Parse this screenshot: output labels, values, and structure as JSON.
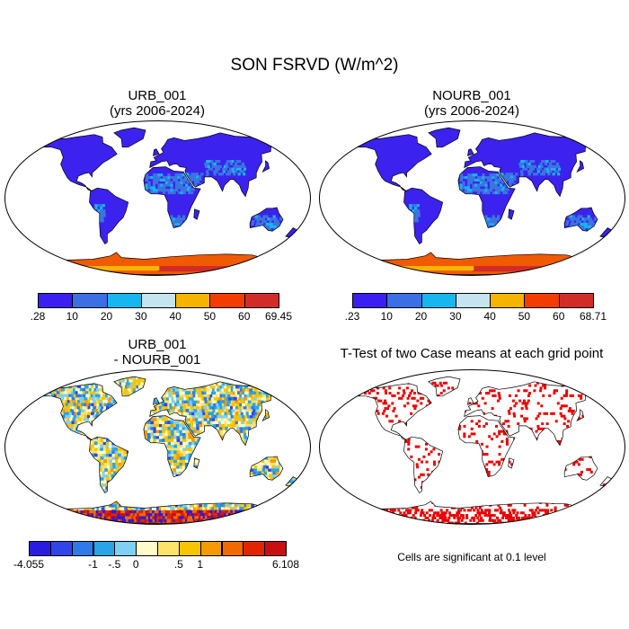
{
  "title": "SON FSRVD (W/m^2)",
  "panels": [
    {
      "title_line1": "URB_001",
      "title_line2": "(yrs 2006-2024)"
    },
    {
      "title_line1": "NOURB_001",
      "title_line2": "(yrs 2006-2024)"
    },
    {
      "title_line1": "URB_001",
      "title_line2": "- NOURB_001"
    },
    {
      "title_line1": "T-Test of two Case means at each grid point",
      "title_line2": ""
    }
  ],
  "note": "Cells are significant at 0.1 level",
  "colors": {
    "abs_scale": [
      "#3b1ff0",
      "#3b6fe3",
      "#16b6ee",
      "#c4e4f0",
      "#f5b400",
      "#f23c00",
      "#d22c28"
    ],
    "diff_scale": [
      "#2a1be0",
      "#3045e8",
      "#2f7ae8",
      "#2aa4e6",
      "#7fd0f2",
      "#fffbc8",
      "#fde36a",
      "#f8c400",
      "#f59a00",
      "#f06a00",
      "#e02500",
      "#c81010"
    ],
    "sig": "#ee0000",
    "land_low": "#3c22ef",
    "land_mid": "#3b74e0",
    "antarctic": "#f05a00"
  },
  "chart_data": [
    {
      "type": "heatmap",
      "title": "URB_001",
      "subtitle": "(yrs 2006-2024)",
      "colorbar_ticks": [
        ".28",
        "10",
        "20",
        "30",
        "40",
        "50",
        "60",
        "69.45"
      ],
      "range": [
        0.28,
        69.45
      ]
    },
    {
      "type": "heatmap",
      "title": "NOURB_001",
      "subtitle": "(yrs 2006-2024)",
      "colorbar_ticks": [
        ".23",
        "10",
        "20",
        "30",
        "40",
        "50",
        "60",
        "68.71"
      ],
      "range": [
        0.23,
        68.71
      ]
    },
    {
      "type": "heatmap",
      "title": "URB_001",
      "subtitle": "- NOURB_001",
      "colorbar_ticks": [
        "-4.055",
        "-1",
        "-.5",
        "0",
        ".5",
        "1",
        "6.108"
      ],
      "range": [
        -4.055,
        6.108
      ]
    },
    {
      "type": "heatmap",
      "title": "T-Test of two Case means at each grid point",
      "legend": "Cells are significant at 0.1 level"
    }
  ]
}
